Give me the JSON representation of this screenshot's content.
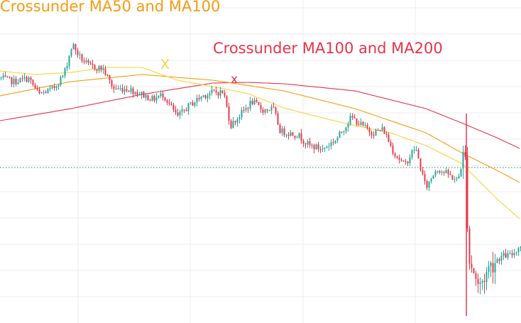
{
  "chart_data": {
    "type": "candlestick",
    "title": "",
    "xlabel": "",
    "ylabel": "",
    "grid": true,
    "ylim": [
      0,
      455
    ],
    "annotations": [
      {
        "text": "Crossunder MA50 and MA100",
        "color": "#f39c12"
      },
      {
        "text": "Crossunder MA100 and MA200",
        "color": "#e8334a"
      }
    ],
    "cross_markers": [
      {
        "text": "X",
        "color": "#f7d23a"
      },
      {
        "text": "x",
        "color": "#e8334a"
      }
    ],
    "colors": {
      "up": "#26a69a",
      "down": "#e53949",
      "ma50": "#f7d23a",
      "ma100": "#f39c12",
      "ma200": "#e8334a",
      "grid": "#eeeeee",
      "level": "#1e8a73"
    },
    "price_anchors": [
      [
        0,
        345
      ],
      [
        20,
        340
      ],
      [
        40,
        345
      ],
      [
        55,
        322
      ],
      [
        75,
        330
      ],
      [
        90,
        350
      ],
      [
        102,
        393
      ],
      [
        112,
        375
      ],
      [
        125,
        362
      ],
      [
        145,
        358
      ],
      [
        160,
        330
      ],
      [
        180,
        330
      ],
      [
        200,
        322
      ],
      [
        215,
        315
      ],
      [
        230,
        322
      ],
      [
        250,
        290
      ],
      [
        265,
        305
      ],
      [
        285,
        320
      ],
      [
        300,
        325
      ],
      [
        315,
        325
      ],
      [
        325,
        278
      ],
      [
        340,
        295
      ],
      [
        355,
        312
      ],
      [
        370,
        300
      ],
      [
        385,
        302
      ],
      [
        395,
        270
      ],
      [
        420,
        265
      ],
      [
        435,
        250
      ],
      [
        455,
        245
      ],
      [
        475,
        260
      ],
      [
        495,
        290
      ],
      [
        510,
        278
      ],
      [
        525,
        268
      ],
      [
        540,
        273
      ],
      [
        555,
        240
      ],
      [
        570,
        222
      ],
      [
        585,
        248
      ],
      [
        600,
        190
      ],
      [
        615,
        218
      ],
      [
        630,
        210
      ],
      [
        645,
        200
      ],
      [
        655,
        245
      ],
      [
        660,
        85
      ],
      [
        665,
        80
      ],
      [
        675,
        50
      ],
      [
        690,
        80
      ],
      [
        700,
        90
      ],
      [
        710,
        95
      ],
      [
        720,
        95
      ],
      [
        734,
        110
      ]
    ],
    "ma50_anchors": [
      [
        0,
        355
      ],
      [
        50,
        350
      ],
      [
        100,
        353
      ],
      [
        150,
        360
      ],
      [
        200,
        360
      ],
      [
        250,
        342
      ],
      [
        300,
        333
      ],
      [
        350,
        323
      ],
      [
        400,
        303
      ],
      [
        450,
        290
      ],
      [
        500,
        278
      ],
      [
        550,
        268
      ],
      [
        600,
        250
      ],
      [
        650,
        225
      ],
      [
        700,
        175
      ],
      [
        734,
        145
      ]
    ],
    "ma100_anchors": [
      [
        0,
        320
      ],
      [
        100,
        340
      ],
      [
        200,
        350
      ],
      [
        300,
        342
      ],
      [
        400,
        327
      ],
      [
        500,
        302
      ],
      [
        600,
        268
      ],
      [
        650,
        240
      ],
      [
        700,
        215
      ],
      [
        734,
        197
      ]
    ],
    "ma200_anchors": [
      [
        0,
        285
      ],
      [
        100,
        302
      ],
      [
        200,
        322
      ],
      [
        300,
        338
      ],
      [
        350,
        339
      ],
      [
        400,
        337
      ],
      [
        500,
        327
      ],
      [
        600,
        302
      ],
      [
        650,
        282
      ],
      [
        700,
        261
      ],
      [
        734,
        245
      ]
    ],
    "level_value": 219
  },
  "labels": {
    "annotation_ma50_ma100": "Crossunder MA50 and MA100",
    "annotation_ma100_ma200": "Crossunder MA100 and MA200",
    "marker_ma50_ma100": "X",
    "marker_ma100_ma200": "x"
  }
}
